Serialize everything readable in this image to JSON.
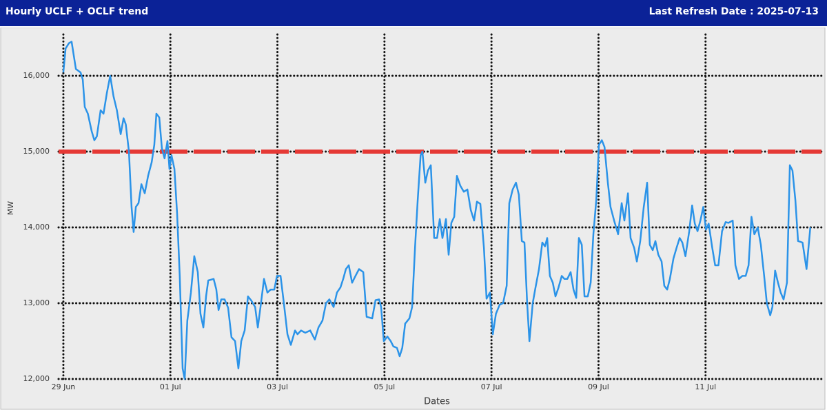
{
  "header": {
    "title": "Hourly UCLF + OCLF trend",
    "refresh": "Last Refresh Date : 2025-07-13"
  },
  "chart_data": {
    "type": "line",
    "y_label": "MW",
    "x_label": "Dates",
    "xlim": [
      -4,
      340
    ],
    "xticks": [
      {
        "value": 0,
        "label": "29 Jun"
      },
      {
        "value": 48,
        "label": "01 Jul"
      },
      {
        "value": 96,
        "label": "03 Jul"
      },
      {
        "value": 144,
        "label": "05 Jul"
      },
      {
        "value": 192,
        "label": "07 Jul"
      },
      {
        "value": 240,
        "label": "09 Jul"
      },
      {
        "value": 288,
        "label": "11 Jul"
      }
    ],
    "ylim": [
      12000,
      16600
    ],
    "yticks": [
      {
        "value": 12000,
        "label": "12,000"
      },
      {
        "value": 13000,
        "label": "13,000"
      },
      {
        "value": 14000,
        "label": "14,000"
      },
      {
        "value": 15000,
        "label": "15,000"
      },
      {
        "value": 16000,
        "label": "16,000"
      }
    ],
    "grid": true,
    "reference_line": {
      "value": 15000,
      "color": "#e53935"
    },
    "series": [
      {
        "color": "#2b93e8",
        "x": [
          0,
          1,
          2.5,
          3.7,
          5.6,
          7.7,
          8.7,
          9.6,
          11,
          12.7,
          13.9,
          15,
          16.7,
          18,
          19.5,
          21,
          22.5,
          24,
          25.7,
          27,
          28,
          29.4,
          30.6,
          31.5,
          32.5,
          33.7,
          35,
          36.5,
          38,
          39.6,
          40.8,
          41.7,
          43,
          44.2,
          45.4,
          46.7,
          47.6,
          48.5,
          49.8,
          51,
          52.2,
          53.5,
          54.4,
          55.6,
          57.2,
          58.7,
          60.3,
          61.5,
          62.8,
          64,
          65,
          67.4,
          68.6,
          69.6,
          70.8,
          72.3,
          73.9,
          75.4,
          77,
          78.5,
          79.8,
          81.3,
          82.8,
          84.4,
          86,
          87.2,
          88.4,
          90,
          91.5,
          93,
          94.6,
          95.8,
          97.4,
          98.9,
          100.5,
          102,
          103.9,
          105,
          106.6,
          108.5,
          110.7,
          112.8,
          114.4,
          116.2,
          117.8,
          119.3,
          121.2,
          122.7,
          124.3,
          125.5,
          126.7,
          128,
          129.5,
          131,
          132.6,
          134.5,
          136,
          138.5,
          140,
          141.6,
          142.5,
          143.7,
          145.3,
          146.8,
          148,
          149.6,
          150.8,
          152,
          153.3,
          155.2,
          156.4,
          157.7,
          158.9,
          160.2,
          161,
          162.3,
          163.5,
          164.8,
          166.3,
          167.6,
          168.8,
          170,
          171.6,
          172.8,
          174,
          175.3,
          176.5,
          178,
          179.6,
          181.2,
          182.7,
          184.2,
          185.5,
          187,
          188.6,
          189.8,
          191.3,
          192.6,
          194,
          195.7,
          197.2,
          198.8,
          200,
          201.5,
          203,
          204.3,
          205.6,
          206.8,
          208,
          209,
          210.5,
          211.7,
          213.3,
          214.8,
          216,
          217,
          218.2,
          219.5,
          220.7,
          222,
          223.5,
          224.7,
          226,
          227.5,
          228.8,
          230,
          231.2,
          232.5,
          233.7,
          235.2,
          236.5,
          237.7,
          239,
          240.2,
          241.5,
          242.7,
          244.2,
          245.4,
          247,
          248.8,
          250.4,
          251.6,
          253.2,
          254.4,
          256,
          257.2,
          258.7,
          260.3,
          261.8,
          263,
          264.3,
          265.5,
          266.8,
          268.3,
          269.5,
          270.8,
          272,
          273.6,
          275,
          276.4,
          277.6,
          279,
          280.7,
          282,
          283.2,
          284.4,
          285.7,
          287,
          288.2,
          289.4,
          291,
          292.3,
          293.8,
          295.4,
          297,
          298.3,
          300.2,
          301.4,
          303,
          304.5,
          306,
          307.3,
          308.6,
          309.9,
          311.4,
          312.8,
          314.3,
          315.5,
          317,
          318,
          319.2,
          320.5,
          321.7,
          323,
          324.5,
          325.8,
          327,
          328.3,
          329.5,
          331.5,
          333.3,
          335
        ],
        "values": [
          16045,
          16360,
          16430,
          16450,
          16090,
          16045,
          15950,
          15590,
          15500,
          15270,
          15150,
          15200,
          15545,
          15500,
          15770,
          16000,
          15730,
          15545,
          15230,
          15440,
          15360,
          15000,
          14270,
          13940,
          14270,
          14320,
          14570,
          14450,
          14680,
          14860,
          15090,
          15500,
          15450,
          15045,
          14910,
          15140,
          14770,
          14950,
          14770,
          14180,
          13360,
          12140,
          12000,
          12770,
          13140,
          13620,
          13410,
          12860,
          12680,
          13090,
          13300,
          13320,
          13180,
          12910,
          13050,
          13050,
          12940,
          12550,
          12500,
          12140,
          12500,
          12640,
          13090,
          13030,
          12950,
          12680,
          12950,
          13320,
          13140,
          13180,
          13180,
          13360,
          13360,
          13000,
          12590,
          12450,
          12640,
          12590,
          12640,
          12610,
          12640,
          12520,
          12680,
          12770,
          13000,
          13050,
          12950,
          13140,
          13210,
          13320,
          13450,
          13500,
          13270,
          13360,
          13450,
          13410,
          12820,
          12800,
          13040,
          13050,
          12950,
          12500,
          12560,
          12500,
          12430,
          12410,
          12300,
          12410,
          12730,
          12800,
          12950,
          13730,
          14360,
          14950,
          15000,
          14590,
          14750,
          14820,
          13860,
          13860,
          14110,
          13860,
          14110,
          13640,
          14060,
          14140,
          14680,
          14550,
          14470,
          14500,
          14230,
          14090,
          14340,
          14310,
          13730,
          13060,
          13140,
          12590,
          12860,
          12980,
          13000,
          13230,
          14320,
          14500,
          14590,
          14430,
          13820,
          13800,
          13000,
          12500,
          13000,
          13200,
          13450,
          13800,
          13750,
          13860,
          13360,
          13270,
          13090,
          13200,
          13360,
          13320,
          13320,
          13410,
          13180,
          13070,
          13860,
          13770,
          13090,
          13090,
          13270,
          13910,
          14360,
          15090,
          15150,
          15060,
          14590,
          14270,
          14090,
          13910,
          14320,
          14090,
          14450,
          13860,
          13730,
          13550,
          13820,
          14270,
          14590,
          13770,
          13700,
          13820,
          13640,
          13550,
          13230,
          13180,
          13320,
          13590,
          13730,
          13860,
          13800,
          13620,
          13950,
          14290,
          14050,
          13950,
          14090,
          14270,
          13970,
          14050,
          13730,
          13500,
          13500,
          13950,
          14070,
          14060,
          14090,
          13500,
          13320,
          13360,
          13360,
          13500,
          14140,
          13910,
          14000,
          13770,
          13360,
          13000,
          12840,
          12950,
          13430,
          13270,
          13140,
          13050,
          13270,
          14820,
          14750,
          14360,
          13820,
          13800,
          13450,
          14000
        ]
      }
    ]
  }
}
